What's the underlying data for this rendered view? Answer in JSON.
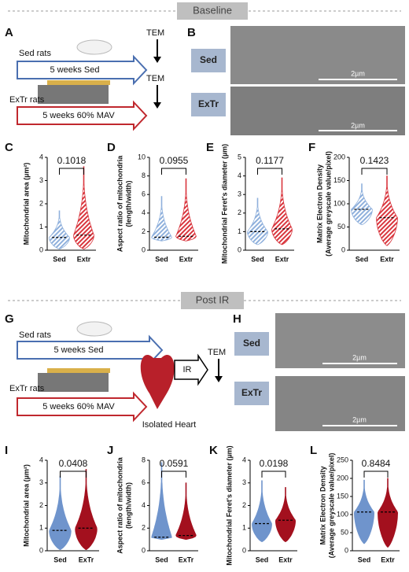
{
  "headers": {
    "baseline": "Baseline",
    "post_ir": "Post IR"
  },
  "panels": {
    "A": {
      "label": "A",
      "sed_rats": "Sed rats",
      "sed_arrow": "5 weeks Sed",
      "tem_1": "TEM",
      "extr_rats": "ExTr rats",
      "extr_arrow": "5 weeks 60% MAV",
      "tem_2": "TEM"
    },
    "B": {
      "label": "B",
      "sed": "Sed",
      "extr": "ExTr",
      "scale_1": "2µm",
      "scale_2": "2µm"
    },
    "G": {
      "label": "G",
      "sed_rats": "Sed rats",
      "sed_arrow": "5 weeks Sed",
      "extr_rats": "ExTr rats",
      "extr_arrow": "5 weeks 60% MAV",
      "heart": "Isolated Heart",
      "ir": "IR",
      "tem": "TEM"
    },
    "H": {
      "label": "H",
      "sed": "Sed",
      "extr": "ExTr",
      "scale_1": "2µm",
      "scale_2": "2µm"
    }
  },
  "chart_data": [
    {
      "type": "violin",
      "label": "C",
      "y_label": [
        "Mitochondrial area (µm²)"
      ],
      "categories": [
        "Sed",
        "Extr"
      ],
      "minima": [
        0.05,
        0.05
      ],
      "medians": [
        0.55,
        0.65
      ],
      "maxima": [
        1.7,
        3.6
      ],
      "colors": [
        "#8fb0dc",
        "#d9363e"
      ],
      "hatched": true,
      "p_value": "0.1018",
      "ylim": [
        0,
        4
      ],
      "yticks": [
        0,
        1,
        2,
        3,
        4
      ]
    },
    {
      "type": "violin",
      "label": "D",
      "y_label": [
        "Aspect ratio of mitochondria",
        "(length/width)"
      ],
      "categories": [
        "Sed",
        "Extr"
      ],
      "minima": [
        1,
        1
      ],
      "medians": [
        1.4,
        1.5
      ],
      "maxima": [
        5.8,
        7.7
      ],
      "colors": [
        "#8fb0dc",
        "#d9363e"
      ],
      "hatched": true,
      "p_value": "0.0955",
      "ylim": [
        0,
        10
      ],
      "yticks": [
        0,
        2,
        4,
        6,
        8,
        10
      ]
    },
    {
      "type": "violin",
      "label": "E",
      "y_label": [
        "Mitochondrial Feret's diameter (µm)"
      ],
      "categories": [
        "Sed",
        "Extr"
      ],
      "minima": [
        0.3,
        0.3
      ],
      "medians": [
        1.0,
        1.15
      ],
      "maxima": [
        2.8,
        3.9
      ],
      "colors": [
        "#8fb0dc",
        "#d9363e"
      ],
      "hatched": true,
      "p_value": "0.1177",
      "ylim": [
        0,
        5
      ],
      "yticks": [
        0,
        1,
        2,
        3,
        4,
        5
      ]
    },
    {
      "type": "violin",
      "label": "F",
      "y_label": [
        "Matrix Electron Density",
        "(Average greyscale value/pixel)"
      ],
      "categories": [
        "Sed",
        "Extr"
      ],
      "minima": [
        55,
        10
      ],
      "medians": [
        88,
        70
      ],
      "maxima": [
        143,
        160
      ],
      "colors": [
        "#8fb0dc",
        "#d9363e"
      ],
      "hatched": true,
      "p_value": "0.1423",
      "ylim": [
        0,
        200
      ],
      "yticks": [
        0,
        50,
        100,
        150,
        200
      ]
    },
    {
      "type": "violin",
      "label": "I",
      "y_label": [
        "Mitochondrial area (µm²)"
      ],
      "categories": [
        "Sed",
        "ExTr"
      ],
      "minima": [
        0.05,
        0.05
      ],
      "medians": [
        0.9,
        1.0
      ],
      "maxima": [
        3.3,
        3.6
      ],
      "colors": [
        "#6f94cc",
        "#a3101e"
      ],
      "hatched": false,
      "p_value": "0.0408",
      "ylim": [
        0,
        4
      ],
      "yticks": [
        0,
        1,
        2,
        3,
        4
      ]
    },
    {
      "type": "violin",
      "label": "J",
      "y_label": [
        "Aspect ratio of mitochondria",
        "(length/width)"
      ],
      "categories": [
        "Sed",
        "ExTr"
      ],
      "minima": [
        1,
        1
      ],
      "medians": [
        1.2,
        1.35
      ],
      "maxima": [
        7.8,
        6.0
      ],
      "colors": [
        "#6f94cc",
        "#a3101e"
      ],
      "hatched": false,
      "p_value": "0.0591",
      "ylim": [
        0,
        8
      ],
      "yticks": [
        0,
        2,
        4,
        6,
        8
      ]
    },
    {
      "type": "violin",
      "label": "K",
      "y_label": [
        "Mitochondrial Feret's diameter (µm)"
      ],
      "categories": [
        "Sed",
        "Extr"
      ],
      "minima": [
        0.4,
        0.4
      ],
      "medians": [
        1.2,
        1.35
      ],
      "maxima": [
        3.1,
        2.8
      ],
      "colors": [
        "#6f94cc",
        "#a3101e"
      ],
      "hatched": false,
      "p_value": "0.0198",
      "ylim": [
        0,
        4
      ],
      "yticks": [
        0,
        1,
        2,
        3,
        4
      ]
    },
    {
      "type": "violin",
      "label": "L",
      "y_label": [
        "Matrix Electron Density",
        "(Average greyscale value/pixel)"
      ],
      "categories": [
        "Sed",
        "Extr"
      ],
      "minima": [
        20,
        10
      ],
      "medians": [
        107,
        107
      ],
      "maxima": [
        195,
        200
      ],
      "colors": [
        "#6f94cc",
        "#a3101e"
      ],
      "hatched": false,
      "p_value": "0.8484",
      "ylim": [
        0,
        250
      ],
      "yticks": [
        0,
        50,
        100,
        150,
        200,
        250
      ]
    }
  ]
}
